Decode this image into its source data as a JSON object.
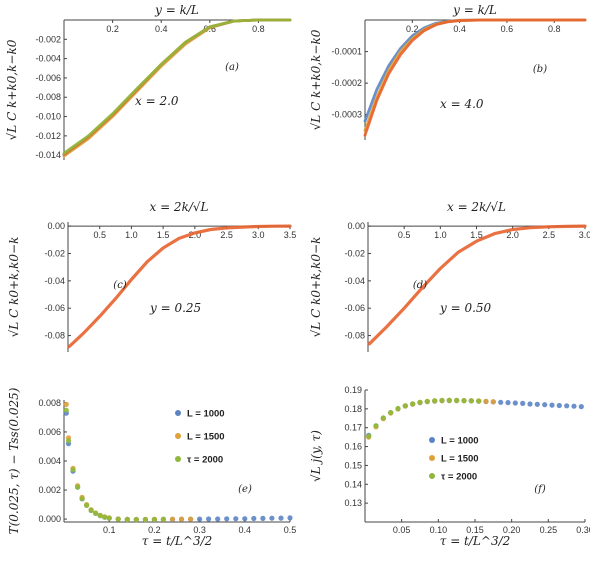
{
  "chart_data": [
    {
      "panel": "(a)",
      "type": "line",
      "top_label": "y = k/L",
      "ylabel": "√L C k+k0,k−k0",
      "annotation": "x = 2.0",
      "xlim": [
        0,
        0.93
      ],
      "ylim": [
        -0.0145,
        0
      ],
      "xticks": [
        "0.2",
        "0.4",
        "0.6",
        "0.8"
      ],
      "yticks": [
        "-0.002",
        "-0.004",
        "-0.006",
        "-0.008",
        "-0.010",
        "-0.012",
        "-0.014"
      ],
      "series": [
        {
          "color": "#5b84c4",
          "x": [
            0,
            0.1,
            0.2,
            0.3,
            0.4,
            0.5,
            0.6,
            0.7,
            0.8,
            0.93
          ],
          "y": [
            -0.014,
            -0.0122,
            -0.0099,
            -0.0073,
            -0.0047,
            -0.0024,
            -0.0008,
            -0.0001,
            0,
            0
          ]
        },
        {
          "color": "#e0a13a",
          "x": [
            0,
            0.1,
            0.2,
            0.3,
            0.4,
            0.5,
            0.6,
            0.7,
            0.8,
            0.93
          ],
          "y": [
            -0.0141,
            -0.0123,
            -0.01,
            -0.0074,
            -0.0048,
            -0.0025,
            -0.0008,
            -0.0001,
            0,
            0
          ]
        },
        {
          "color": "#e8622c",
          "x": [
            0,
            0.1,
            0.2,
            0.3,
            0.4,
            0.5,
            0.6,
            0.7,
            0.8,
            0.93
          ],
          "y": [
            -0.0139,
            -0.0121,
            -0.0098,
            -0.0072,
            -0.0046,
            -0.0023,
            -0.0007,
            -0.0001,
            0,
            0
          ]
        },
        {
          "color": "#8fb93b",
          "x": [
            0,
            0.1,
            0.2,
            0.3,
            0.4,
            0.5,
            0.6,
            0.7,
            0.8,
            0.93
          ],
          "y": [
            -0.0138,
            -0.012,
            -0.0097,
            -0.0071,
            -0.0046,
            -0.0023,
            -0.0007,
            -0.0001,
            0,
            0
          ]
        }
      ]
    },
    {
      "panel": "(b)",
      "type": "line",
      "top_label": "y = k/L",
      "ylabel": "√L C k+k0,k−k0",
      "annotation": "x = 4.0",
      "xlim": [
        0,
        0.93
      ],
      "ylim": [
        -0.00038,
        0
      ],
      "xticks": [
        "0.2",
        "0.4",
        "0.6",
        "0.8"
      ],
      "yticks": [
        "-0.0001",
        "-0.0002",
        "-0.0003"
      ],
      "series": [
        {
          "color": "#5b84c4",
          "x": [
            0,
            0.05,
            0.1,
            0.15,
            0.2,
            0.25,
            0.3,
            0.35,
            0.4,
            0.5,
            0.6,
            0.93
          ],
          "y": [
            -0.00032,
            -0.00022,
            -0.000145,
            -9e-05,
            -5e-05,
            -2.5e-05,
            -1e-05,
            -4e-06,
            -1e-06,
            0,
            0,
            0
          ]
        },
        {
          "color": "#e0a13a",
          "x": [
            0,
            0.05,
            0.1,
            0.15,
            0.2,
            0.25,
            0.3,
            0.35,
            0.4,
            0.5,
            0.6,
            0.93
          ],
          "y": [
            -0.00035,
            -0.000245,
            -0.00016,
            -0.0001,
            -6e-05,
            -3e-05,
            -1.3e-05,
            -5e-06,
            -1e-06,
            0,
            0,
            0
          ]
        },
        {
          "color": "#e8622c",
          "x": [
            0,
            0.05,
            0.1,
            0.15,
            0.2,
            0.25,
            0.3,
            0.35,
            0.4,
            0.5,
            0.6,
            0.93
          ],
          "y": [
            -0.000365,
            -0.000255,
            -0.00017,
            -0.00011,
            -6.5e-05,
            -3.4e-05,
            -1.5e-05,
            -6e-06,
            -2e-06,
            0,
            0,
            0
          ]
        }
      ]
    },
    {
      "panel": "(c)",
      "type": "line",
      "top_label": "x = 2k/√L",
      "ylabel": "√L C k0+k,k0−k",
      "annotation": "y = 0.25",
      "xlim": [
        0,
        3.5
      ],
      "ylim": [
        -0.092,
        0.003
      ],
      "xticks": [
        "0.5",
        "1.0",
        "1.5",
        "2.0",
        "2.5",
        "3.0",
        "3.5"
      ],
      "yticks": [
        "0.00",
        "-0.02",
        "-0.04",
        "-0.06",
        "-0.08"
      ],
      "series": [
        {
          "color": "#e8622c",
          "x": [
            0.02,
            0.25,
            0.5,
            0.75,
            1.0,
            1.25,
            1.5,
            1.75,
            2.0,
            2.25,
            2.5,
            2.75,
            3.0,
            3.25,
            3.5
          ],
          "y": [
            -0.088,
            -0.078,
            -0.066,
            -0.053,
            -0.039,
            -0.026,
            -0.016,
            -0.009,
            -0.005,
            -0.0025,
            -0.0013,
            -0.0007,
            -0.0003,
            -0.0001,
            0
          ]
        }
      ]
    },
    {
      "panel": "(d)",
      "type": "line",
      "top_label": "x = 2k/√L",
      "ylabel": "√L C k0+k,k0−k",
      "annotation": "y = 0.50",
      "xlim": [
        0,
        3.0
      ],
      "ylim": [
        -0.092,
        0.003
      ],
      "xticks": [
        "0.5",
        "1.0",
        "1.5",
        "2.0",
        "2.5",
        "3.0"
      ],
      "yticks": [
        "0.00",
        "-0.02",
        "-0.04",
        "-0.06",
        "-0.08"
      ],
      "series": [
        {
          "color": "#e8622c",
          "x": [
            0.02,
            0.25,
            0.5,
            0.75,
            1.0,
            1.25,
            1.5,
            1.75,
            2.0,
            2.25,
            2.5,
            2.75,
            3.0
          ],
          "y": [
            -0.086,
            -0.074,
            -0.06,
            -0.045,
            -0.031,
            -0.019,
            -0.011,
            -0.0055,
            -0.0025,
            -0.0012,
            -0.0005,
            -0.0002,
            0
          ]
        }
      ]
    },
    {
      "panel": "(e)",
      "type": "scatter",
      "ylabel": "T(0.025, τ) − Tss(0.025)",
      "xlabel": "τ = t/L^3/2",
      "xlim": [
        0,
        0.5
      ],
      "ylim": [
        -0.0002,
        0.0082
      ],
      "xticks": [
        "0.1",
        "0.2",
        "0.3",
        "0.4",
        "0.5"
      ],
      "yticks": [
        "0.000",
        "0.002",
        "0.004",
        "0.006",
        "0.008"
      ],
      "legend": [
        "L = 1000",
        "L = 1500",
        "τ = 2000"
      ],
      "legend_position": "top-right",
      "series": [
        {
          "name": "L = 1000",
          "color": "#5b84c4",
          "x": [
            0.005,
            0.01,
            0.02,
            0.03,
            0.04,
            0.05,
            0.06,
            0.07,
            0.08,
            0.09,
            0.1,
            0.12,
            0.14,
            0.16,
            0.18,
            0.2,
            0.22,
            0.24,
            0.26,
            0.28,
            0.3,
            0.32,
            0.34,
            0.36,
            0.38,
            0.4,
            0.42,
            0.44,
            0.46,
            0.48,
            0.5
          ],
          "y": [
            0.0073,
            0.0052,
            0.0033,
            0.0022,
            0.0014,
            0.00095,
            0.0006,
            0.0004,
            0.00025,
            0.00014,
            7e-05,
            1e-05,
            -2e-05,
            -3e-05,
            -3e-05,
            -3e-05,
            -2e-05,
            -2e-05,
            -1e-05,
            -1e-05,
            0.0,
            1e-05,
            1e-05,
            2e-05,
            3e-05,
            3e-05,
            4e-05,
            5e-05,
            6e-05,
            7e-05,
            8e-05
          ]
        },
        {
          "name": "L = 1500",
          "color": "#e0a13a",
          "x": [
            0.005,
            0.01,
            0.02,
            0.03,
            0.04,
            0.05,
            0.06,
            0.07,
            0.08,
            0.09,
            0.1,
            0.12,
            0.14,
            0.16,
            0.18,
            0.2,
            0.22,
            0.24,
            0.26,
            0.28
          ],
          "y": [
            0.0079,
            0.0056,
            0.0035,
            0.0023,
            0.0015,
            0.001,
            0.00065,
            0.00042,
            0.00026,
            0.00015,
            8e-05,
            1e-05,
            -2e-05,
            -3e-05,
            -3e-05,
            -2e-05,
            -2e-05,
            -1e-05,
            -1e-05,
            0.0
          ]
        },
        {
          "name": "τ = 2000",
          "color": "#8fb93b",
          "x": [
            0.005,
            0.01,
            0.02,
            0.03,
            0.04,
            0.05,
            0.06,
            0.07,
            0.08,
            0.09,
            0.1,
            0.12,
            0.14,
            0.16,
            0.18,
            0.2,
            0.22
          ],
          "y": [
            0.0075,
            0.0054,
            0.0034,
            0.0022,
            0.0014,
            0.00095,
            0.0006,
            0.0004,
            0.00024,
            0.00013,
            6e-05,
            0.0,
            -3e-05,
            -3e-05,
            -3e-05,
            -2e-05,
            -1e-05
          ]
        }
      ]
    },
    {
      "panel": "(f)",
      "type": "scatter",
      "ylabel": "√L j(y, τ)",
      "xlabel": "τ = t/L^3/2",
      "xlim": [
        0,
        0.3
      ],
      "ylim": [
        0.12,
        0.19
      ],
      "xticks": [
        "0.05",
        "0.10",
        "0.15",
        "0.20",
        "0.25",
        "0.30"
      ],
      "yticks": [
        "0.13",
        "0.14",
        "0.15",
        "0.16",
        "0.17",
        "0.18",
        "0.19"
      ],
      "legend": [
        "L = 1000",
        "L = 1500",
        "τ = 2000"
      ],
      "legend_position": "center",
      "series": [
        {
          "name": "L = 1000",
          "color": "#5b84c4",
          "x": [
            0.005,
            0.015,
            0.025,
            0.035,
            0.045,
            0.055,
            0.065,
            0.075,
            0.085,
            0.095,
            0.105,
            0.115,
            0.125,
            0.135,
            0.145,
            0.155,
            0.165,
            0.175,
            0.185,
            0.195,
            0.205,
            0.215,
            0.225,
            0.235,
            0.245,
            0.255,
            0.265,
            0.275,
            0.285,
            0.295
          ],
          "y": [
            0.166,
            0.171,
            0.175,
            0.178,
            0.18,
            0.1815,
            0.1825,
            0.1833,
            0.1838,
            0.1841,
            0.1843,
            0.1844,
            0.1844,
            0.1843,
            0.1842,
            0.1841,
            0.1839,
            0.1837,
            0.1835,
            0.1833,
            0.1831,
            0.1829,
            0.1826,
            0.1824,
            0.1822,
            0.182,
            0.1818,
            0.1816,
            0.1814,
            0.1812
          ]
        },
        {
          "name": "L = 1500",
          "color": "#e0a13a",
          "x": [
            0.005,
            0.015,
            0.025,
            0.035,
            0.045,
            0.055,
            0.065,
            0.075,
            0.085,
            0.095,
            0.105,
            0.115,
            0.125,
            0.135,
            0.145,
            0.155,
            0.165,
            0.175
          ],
          "y": [
            0.165,
            0.1705,
            0.1748,
            0.1778,
            0.18,
            0.1815,
            0.1826,
            0.1834,
            0.1839,
            0.1842,
            0.1844,
            0.1845,
            0.1845,
            0.1844,
            0.1843,
            0.1842,
            0.184,
            0.1838
          ]
        },
        {
          "name": "τ = 2000",
          "color": "#8fb93b",
          "x": [
            0.005,
            0.015,
            0.025,
            0.035,
            0.045,
            0.055,
            0.065,
            0.075,
            0.085,
            0.095,
            0.105,
            0.115,
            0.125,
            0.135,
            0.145,
            0.155
          ],
          "y": [
            0.1655,
            0.171,
            0.1752,
            0.178,
            0.1802,
            0.1817,
            0.1827,
            0.1835,
            0.184,
            0.1843,
            0.1845,
            0.1846,
            0.1845,
            0.1844,
            0.1843,
            0.1841
          ]
        }
      ]
    }
  ]
}
